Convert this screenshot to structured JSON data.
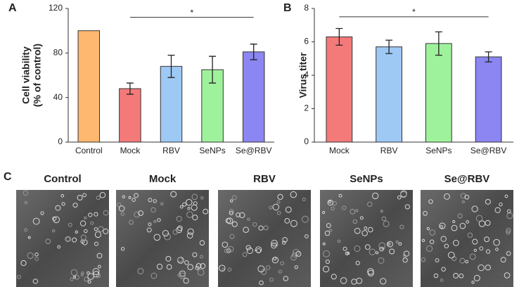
{
  "chart_data": [
    {
      "type": "bar",
      "panel_label": "A",
      "ylabel": [
        "Cell viability",
        "(% of control)"
      ],
      "categories": [
        "Control",
        "Mock",
        "RBV",
        "SeNPs",
        "Se@RBV"
      ],
      "values": [
        100,
        48,
        68,
        65,
        81
      ],
      "errors": [
        0,
        5,
        10,
        12,
        7
      ],
      "colors": [
        "#ffb870",
        "#f47a7a",
        "#9ec9f5",
        "#9ff29c",
        "#8b86f2"
      ],
      "ylim": [
        0,
        120
      ],
      "yticks": [
        0,
        40,
        80,
        120
      ],
      "annotations": [
        {
          "label": "*",
          "from": 1,
          "to": 4,
          "y": 112
        }
      ]
    },
    {
      "type": "bar",
      "panel_label": "B",
      "ylabel": [
        "Virus titer"
      ],
      "categories": [
        "Mock",
        "RBV",
        "SeNPs",
        "Se@RBV"
      ],
      "values": [
        6.3,
        5.7,
        5.9,
        5.1
      ],
      "errors": [
        0.5,
        0.4,
        0.7,
        0.3
      ],
      "colors": [
        "#f47a7a",
        "#9ec9f5",
        "#9ff29c",
        "#8b86f2"
      ],
      "ylim": [
        0,
        8
      ],
      "yticks": [
        0,
        2,
        4,
        6,
        8
      ],
      "annotations": [
        {
          "label": "*",
          "from": 0,
          "to": 3,
          "y": 7.5
        }
      ]
    }
  ],
  "panel_c": {
    "label": "C",
    "titles": [
      "Control",
      "Mock",
      "RBV",
      "SeNPs",
      "Se@RBV"
    ]
  }
}
